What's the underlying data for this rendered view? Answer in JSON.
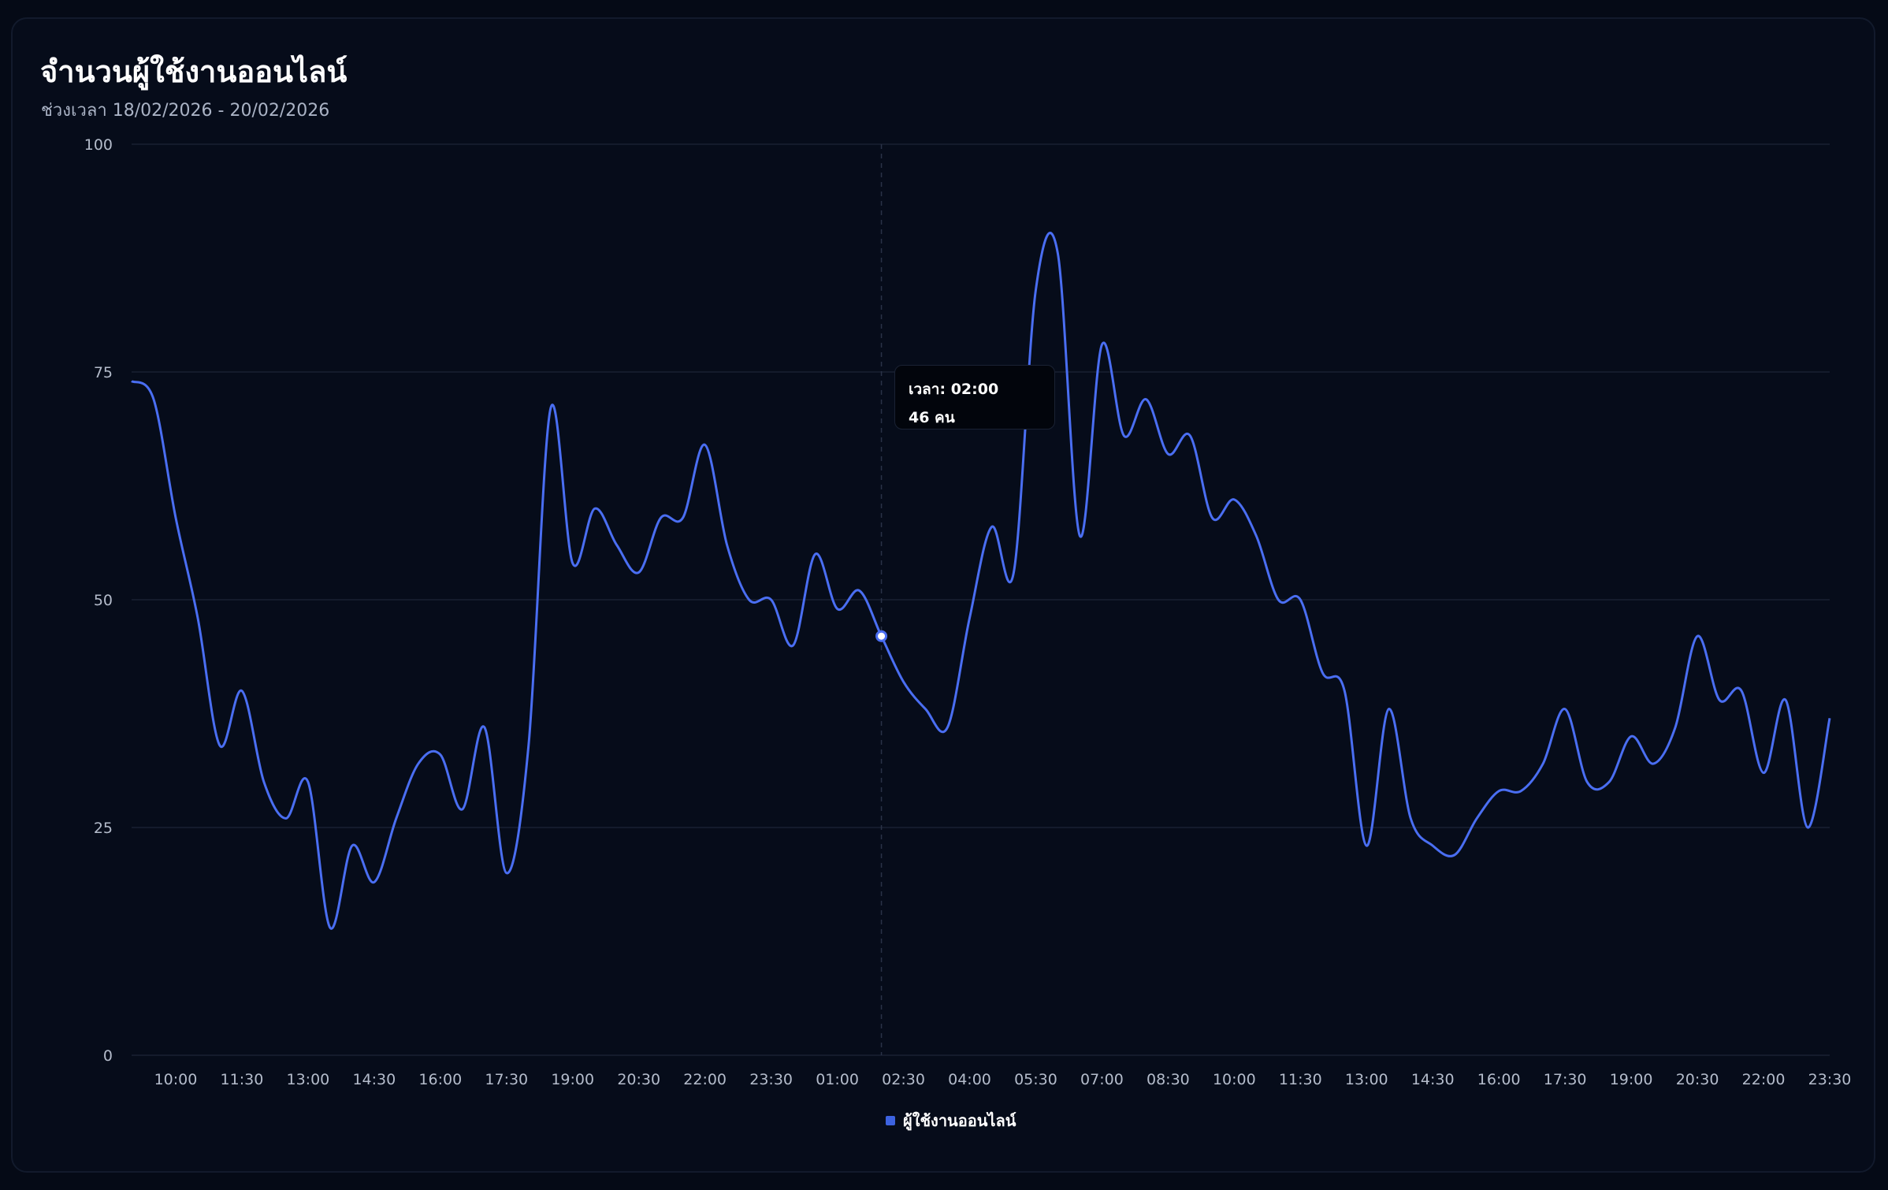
{
  "header": {
    "title": "จำนวนผู้ใช้งานออนไลน์",
    "subtitle": "ช่วงเวลา 18/02/2026 - 20/02/2026"
  },
  "tooltip": {
    "time_label": "เวลา: 02:00",
    "value_label": "46 คน"
  },
  "legend": {
    "label": "ผู้ใช้งานออนไลน์"
  },
  "colors": {
    "line": "#4a6ef2",
    "legend_swatch": "#3d63e0",
    "grid": "#182033",
    "hover_line": "#2a3247"
  },
  "chart_data": {
    "type": "line",
    "title": "จำนวนผู้ใช้งานออนไลน์",
    "subtitle": "ช่วงเวลา 18/02/2026 - 20/02/2026",
    "ylim": [
      0,
      100
    ],
    "yticks": [
      "0",
      "25",
      "50",
      "75",
      "100"
    ],
    "xticks": [
      "10:00",
      "11:30",
      "13:00",
      "14:30",
      "16:00",
      "17:30",
      "19:00",
      "20:30",
      "22:00",
      "23:30",
      "01:00",
      "02:30",
      "04:00",
      "05:30",
      "07:00",
      "08:30",
      "10:00",
      "11:30",
      "13:00",
      "14:30",
      "16:00",
      "17:30",
      "19:00",
      "20:30",
      "22:00",
      "23:30"
    ],
    "x_start": "09:00",
    "x_step_minutes": 30,
    "series": [
      {
        "name": "ผู้ใช้งานออนไลน์",
        "values": [
          74,
          72,
          59,
          48,
          34,
          40,
          30,
          26,
          30,
          14,
          23,
          19,
          26,
          32,
          33,
          27,
          36,
          20,
          34,
          71,
          54,
          60,
          56,
          53,
          59,
          59,
          67,
          56,
          50,
          50,
          45,
          55,
          49,
          51,
          46,
          41,
          38,
          36,
          48,
          58,
          53,
          84,
          88,
          57,
          78,
          68,
          72,
          66,
          68,
          59,
          61,
          57,
          50,
          50,
          42,
          40,
          23,
          38,
          26,
          23,
          22,
          26,
          29,
          29,
          32,
          38,
          30,
          30,
          35,
          32,
          36,
          46,
          39,
          40,
          31,
          39,
          25,
          37
        ]
      }
    ],
    "highlight": {
      "x": "02:00",
      "value": 46
    },
    "legend": "bottom-center",
    "grid": true
  }
}
